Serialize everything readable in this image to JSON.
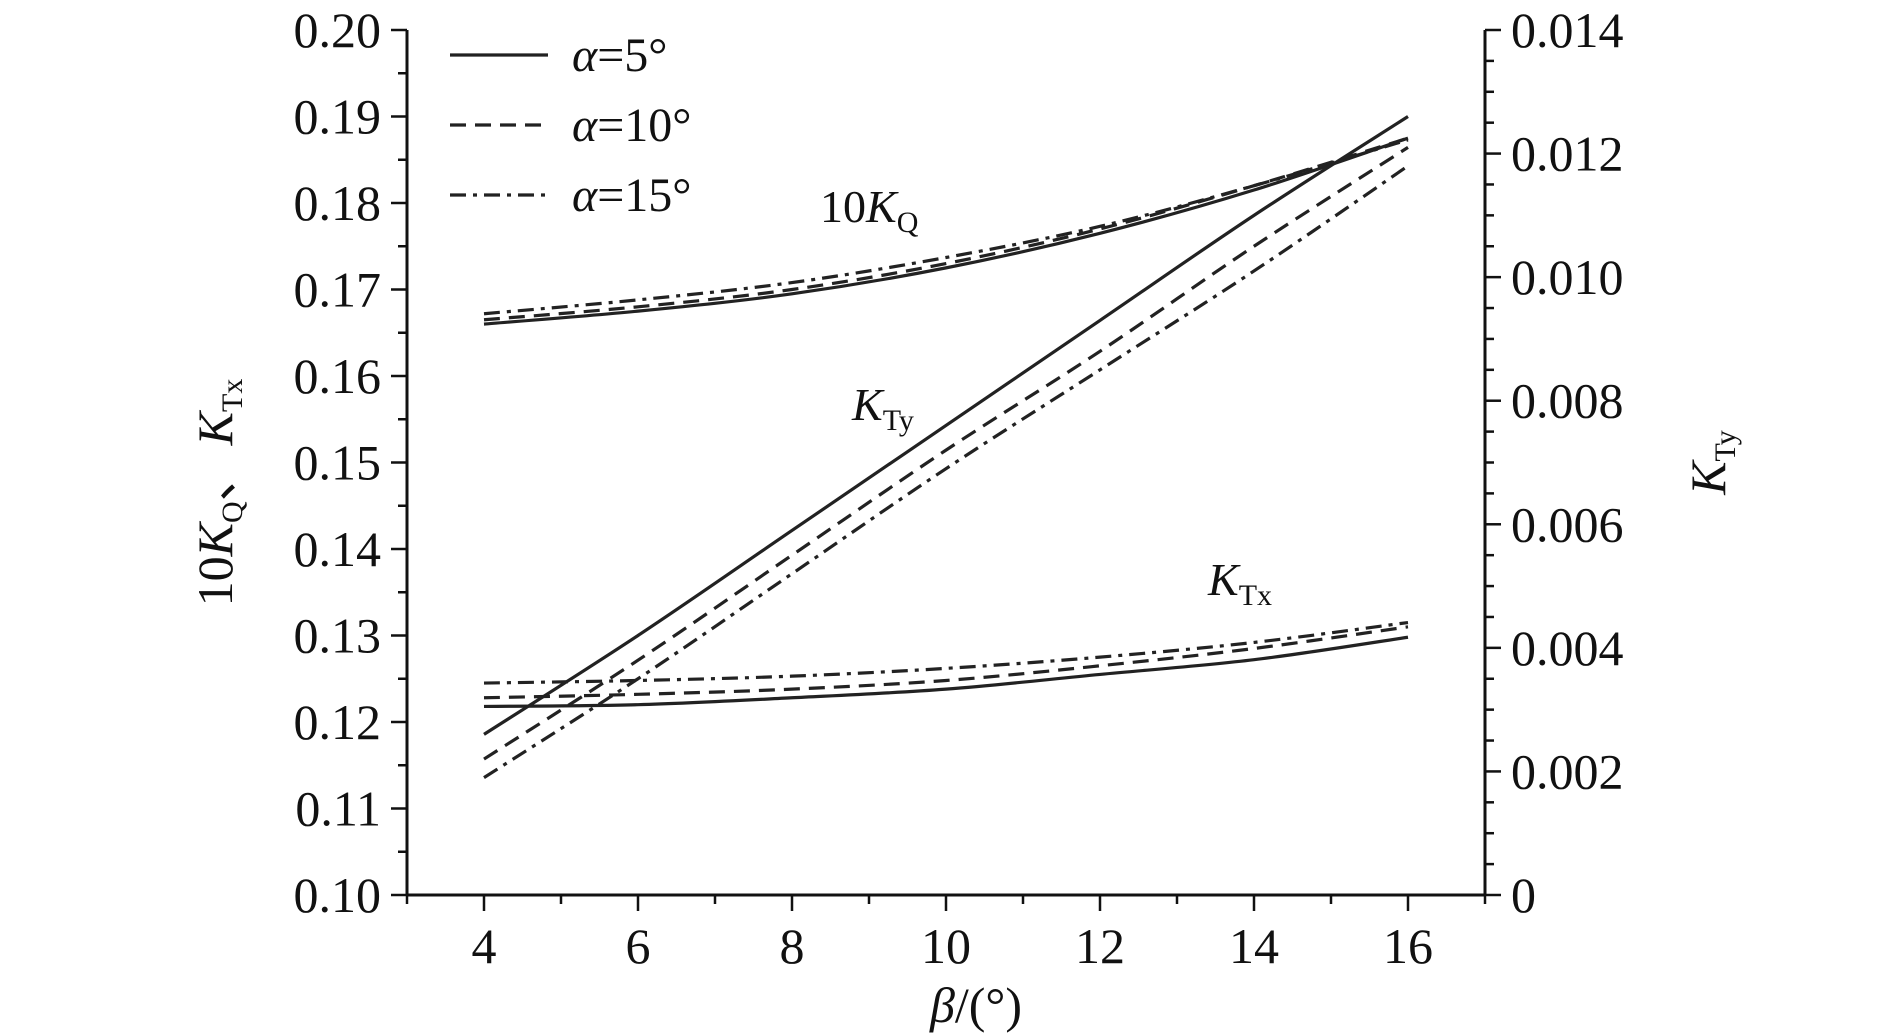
{
  "chart_data": {
    "type": "line",
    "title": "",
    "x": [
      4,
      6,
      8,
      10,
      12,
      14,
      16
    ],
    "xlim": [
      3,
      17
    ],
    "xticks": [
      4,
      6,
      8,
      10,
      12,
      14,
      16
    ],
    "xlabel": {
      "symbol": "β",
      "unit": "/(°)"
    },
    "ylim_left": [
      0.1,
      0.2
    ],
    "yticks_left": [
      "0.10",
      "0.11",
      "0.12",
      "0.13",
      "0.14",
      "0.15",
      "0.16",
      "0.17",
      "0.18",
      "0.19",
      "0.20"
    ],
    "ylabel_left": {
      "prefix": "10",
      "sym1": "K",
      "sub1": "Q",
      "sep": "、",
      "sym2": "K",
      "sub2": "Tx"
    },
    "ylim_right": [
      0,
      0.014
    ],
    "yticks_right": [
      "0",
      "0.002",
      "0.004",
      "0.006",
      "0.008",
      "0.010",
      "0.012",
      "0.014"
    ],
    "ylabel_right": {
      "sym": "K",
      "sub": "Ty"
    },
    "grid": false,
    "legend_position": "top-left",
    "legend": [
      {
        "style": "solid",
        "label_sym": "α",
        "label_val": "=5°"
      },
      {
        "style": "dashed",
        "label_sym": "α",
        "label_val": "=10°"
      },
      {
        "style": "dashdot",
        "label_sym": "α",
        "label_val": "=15°"
      }
    ],
    "annotations": [
      {
        "group": "10KQ",
        "prefix": "10",
        "sym": "K",
        "sub": "Q"
      },
      {
        "group": "KTy",
        "prefix": "",
        "sym": "K",
        "sub": "Ty"
      },
      {
        "group": "KTx",
        "prefix": "",
        "sym": "K",
        "sub": "Tx"
      }
    ],
    "series": [
      {
        "group": "10KQ",
        "axis": "left",
        "alpha": 5,
        "style": "solid",
        "values": [
          0.166,
          0.1675,
          0.1695,
          0.1725,
          0.1765,
          0.1815,
          0.1875
        ]
      },
      {
        "group": "10KQ",
        "axis": "left",
        "alpha": 10,
        "style": "dashed",
        "values": [
          0.1665,
          0.168,
          0.17,
          0.173,
          0.177,
          0.182,
          0.1875
        ]
      },
      {
        "group": "10KQ",
        "axis": "left",
        "alpha": 15,
        "style": "dashdot",
        "values": [
          0.1672,
          0.1688,
          0.1708,
          0.1737,
          0.1773,
          0.182,
          0.1873
        ]
      },
      {
        "group": "KTx",
        "axis": "left",
        "alpha": 5,
        "style": "solid",
        "values": [
          0.1218,
          0.122,
          0.1228,
          0.1238,
          0.1255,
          0.1272,
          0.1298
        ]
      },
      {
        "group": "KTx",
        "axis": "left",
        "alpha": 10,
        "style": "dashed",
        "values": [
          0.1228,
          0.1232,
          0.1238,
          0.1248,
          0.1265,
          0.1285,
          0.131
        ]
      },
      {
        "group": "KTx",
        "axis": "left",
        "alpha": 15,
        "style": "dashdot",
        "values": [
          0.1245,
          0.1248,
          0.1253,
          0.1262,
          0.1275,
          0.1292,
          0.1315
        ]
      },
      {
        "group": "KTy",
        "axis": "right",
        "alpha": 5,
        "style": "solid",
        "values": [
          0.0026,
          0.0042,
          0.0059,
          0.0076,
          0.0093,
          0.011,
          0.0126
        ]
      },
      {
        "group": "KTy",
        "axis": "right",
        "alpha": 10,
        "style": "dashed",
        "values": [
          0.0022,
          0.0038,
          0.0055,
          0.0072,
          0.0088,
          0.0105,
          0.0121
        ]
      },
      {
        "group": "KTy",
        "axis": "right",
        "alpha": 15,
        "style": "dashdot",
        "values": [
          0.0019,
          0.0035,
          0.0052,
          0.0069,
          0.0085,
          0.0101,
          0.0118
        ]
      }
    ]
  }
}
